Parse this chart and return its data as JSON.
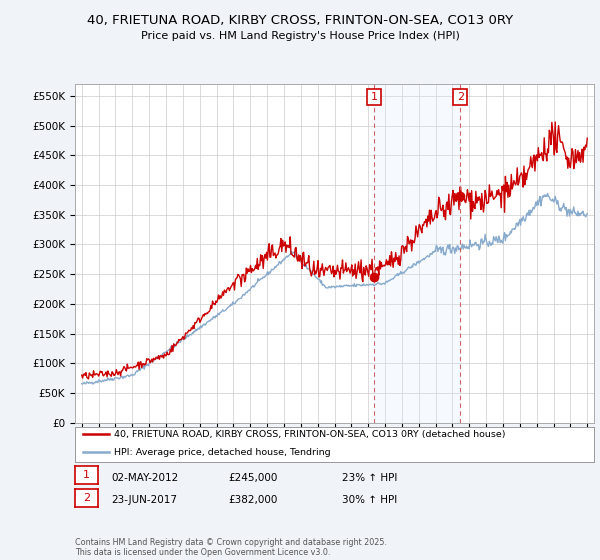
{
  "title": "40, FRIETUNA ROAD, KIRBY CROSS, FRINTON-ON-SEA, CO13 0RY",
  "subtitle": "Price paid vs. HM Land Registry's House Price Index (HPI)",
  "ylabel_ticks": [
    "£0",
    "£50K",
    "£100K",
    "£150K",
    "£200K",
    "£250K",
    "£300K",
    "£350K",
    "£400K",
    "£450K",
    "£500K",
    "£550K"
  ],
  "ylim": [
    0,
    570000
  ],
  "yticks": [
    0,
    50000,
    100000,
    150000,
    200000,
    250000,
    300000,
    350000,
    400000,
    450000,
    500000,
    550000
  ],
  "sale1_x": 2012.35,
  "sale1_y": 245000,
  "sale2_x": 2017.47,
  "sale2_y": 382000,
  "sale1_date": "02-MAY-2012",
  "sale1_price": "£245,000",
  "sale1_hpi": "23% ↑ HPI",
  "sale2_date": "23-JUN-2017",
  "sale2_price": "£382,000",
  "sale2_hpi": "30% ↑ HPI",
  "legend_line1": "40, FRIETUNA ROAD, KIRBY CROSS, FRINTON-ON-SEA, CO13 0RY (detached house)",
  "legend_line2": "HPI: Average price, detached house, Tendring",
  "footer": "Contains HM Land Registry data © Crown copyright and database right 2025.\nThis data is licensed under the Open Government Licence v3.0.",
  "red_color": "#cc0000",
  "blue_color": "#88aacc",
  "shade_color": "#ddeeff",
  "bg_color": "#f0f4f8",
  "plot_bg": "#ffffff",
  "grid_color": "#cccccc",
  "xlim_left": 1994.6,
  "xlim_right": 2025.4
}
